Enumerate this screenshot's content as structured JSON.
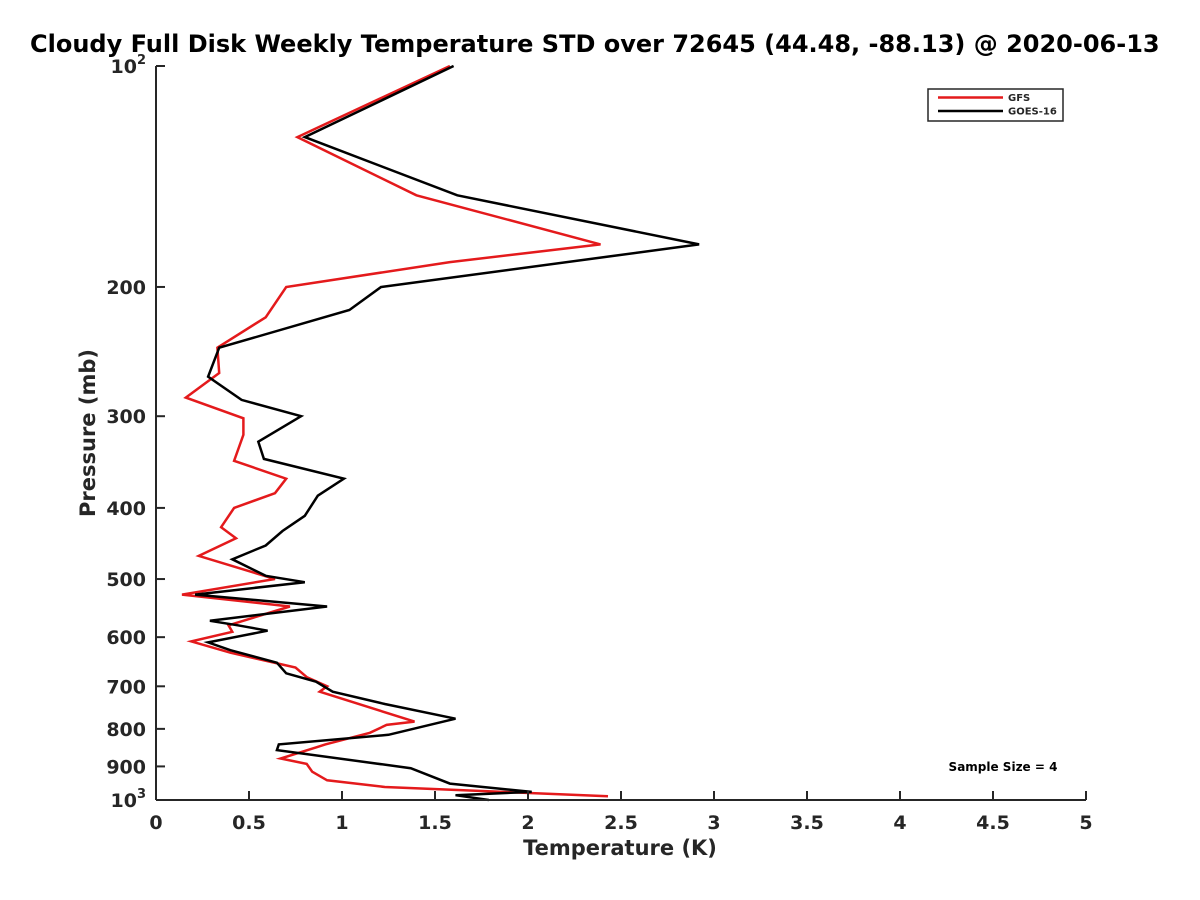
{
  "chart_data": {
    "type": "line",
    "title": "Cloudy Full Disk Weekly Temperature STD over 72645 (44.48, -88.13) @ 2020-06-13",
    "xlabel": "Temperature (K)",
    "ylabel": "Pressure (mb)",
    "xlim": [
      0,
      5
    ],
    "ylim": [
      100,
      1000
    ],
    "y_scale": "log",
    "y_reversed": true,
    "x_ticks": [
      "0",
      "0.5",
      "1",
      "1.5",
      "2",
      "2.5",
      "3",
      "3.5",
      "4",
      "4.5",
      "5"
    ],
    "y_ticks": [
      {
        "value": 100,
        "base": "10",
        "exp": "2"
      },
      {
        "value": 200,
        "label": "200"
      },
      {
        "value": 300,
        "label": "300"
      },
      {
        "value": 400,
        "label": "400"
      },
      {
        "value": 500,
        "label": "500"
      },
      {
        "value": 600,
        "label": "600"
      },
      {
        "value": 700,
        "label": "700"
      },
      {
        "value": 800,
        "label": "800"
      },
      {
        "value": 900,
        "label": "900"
      },
      {
        "value": 1000,
        "base": "10",
        "exp": "3"
      }
    ],
    "grid": false,
    "legend_position": "top-right",
    "annotation": "Sample Size = 4",
    "series": [
      {
        "name": "GFS",
        "color": "#e41a1c",
        "points": [
          [
            1.58,
            100
          ],
          [
            0.76,
            125
          ],
          [
            1.4,
            150
          ],
          [
            2.39,
            175
          ],
          [
            1.58,
            185
          ],
          [
            0.7,
            200
          ],
          [
            0.59,
            220
          ],
          [
            0.33,
            242
          ],
          [
            0.34,
            262
          ],
          [
            0.16,
            283
          ],
          [
            0.47,
            302
          ],
          [
            0.47,
            318
          ],
          [
            0.42,
            345
          ],
          [
            0.7,
            365
          ],
          [
            0.64,
            382
          ],
          [
            0.42,
            400
          ],
          [
            0.35,
            425
          ],
          [
            0.43,
            440
          ],
          [
            0.23,
            465
          ],
          [
            0.64,
            500
          ],
          [
            0.14,
            525
          ],
          [
            0.72,
            545
          ],
          [
            0.39,
            578
          ],
          [
            0.41,
            590
          ],
          [
            0.19,
            608
          ],
          [
            0.4,
            630
          ],
          [
            0.75,
            660
          ],
          [
            0.81,
            680
          ],
          [
            0.92,
            700
          ],
          [
            0.88,
            712
          ],
          [
            1.39,
            782
          ],
          [
            1.24,
            790
          ],
          [
            1.15,
            810
          ],
          [
            0.91,
            840
          ],
          [
            0.86,
            848
          ],
          [
            0.67,
            878
          ],
          [
            0.81,
            893
          ],
          [
            0.84,
            915
          ],
          [
            0.92,
            940
          ],
          [
            1.23,
            960
          ],
          [
            2.43,
            988
          ]
        ]
      },
      {
        "name": "GOES-16",
        "color": "#000000",
        "points": [
          [
            1.6,
            100
          ],
          [
            0.8,
            125
          ],
          [
            1.62,
            150
          ],
          [
            2.92,
            175
          ],
          [
            1.21,
            200
          ],
          [
            1.04,
            215
          ],
          [
            0.34,
            242
          ],
          [
            0.28,
            265
          ],
          [
            0.46,
            285
          ],
          [
            0.78,
            300
          ],
          [
            0.55,
            325
          ],
          [
            0.58,
            343
          ],
          [
            1.01,
            365
          ],
          [
            0.87,
            385
          ],
          [
            0.8,
            410
          ],
          [
            0.68,
            430
          ],
          [
            0.59,
            450
          ],
          [
            0.41,
            470
          ],
          [
            0.59,
            495
          ],
          [
            0.8,
            505
          ],
          [
            0.21,
            525
          ],
          [
            0.92,
            545
          ],
          [
            0.29,
            570
          ],
          [
            0.44,
            578
          ],
          [
            0.6,
            588
          ],
          [
            0.28,
            610
          ],
          [
            0.4,
            625
          ],
          [
            0.65,
            650
          ],
          [
            0.7,
            672
          ],
          [
            0.86,
            690
          ],
          [
            0.95,
            712
          ],
          [
            1.23,
            740
          ],
          [
            1.61,
            775
          ],
          [
            1.25,
            815
          ],
          [
            0.66,
            840
          ],
          [
            0.65,
            855
          ],
          [
            1.37,
            905
          ],
          [
            1.58,
            950
          ],
          [
            2.02,
            975
          ],
          [
            1.61,
            985
          ],
          [
            1.79,
            1005
          ]
        ]
      }
    ]
  }
}
